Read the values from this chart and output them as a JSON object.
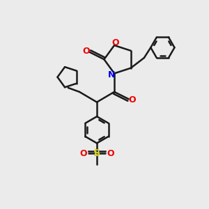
{
  "bg_color": "#ebebeb",
  "bond_color": "#1a1a1a",
  "N_color": "#0000ee",
  "O_color": "#ee0000",
  "S_color": "#cccc00",
  "lw": 1.8,
  "figsize": [
    3.0,
    3.0
  ],
  "dpi": 100,
  "xlim": [
    0,
    10
  ],
  "ylim": [
    0,
    10
  ]
}
